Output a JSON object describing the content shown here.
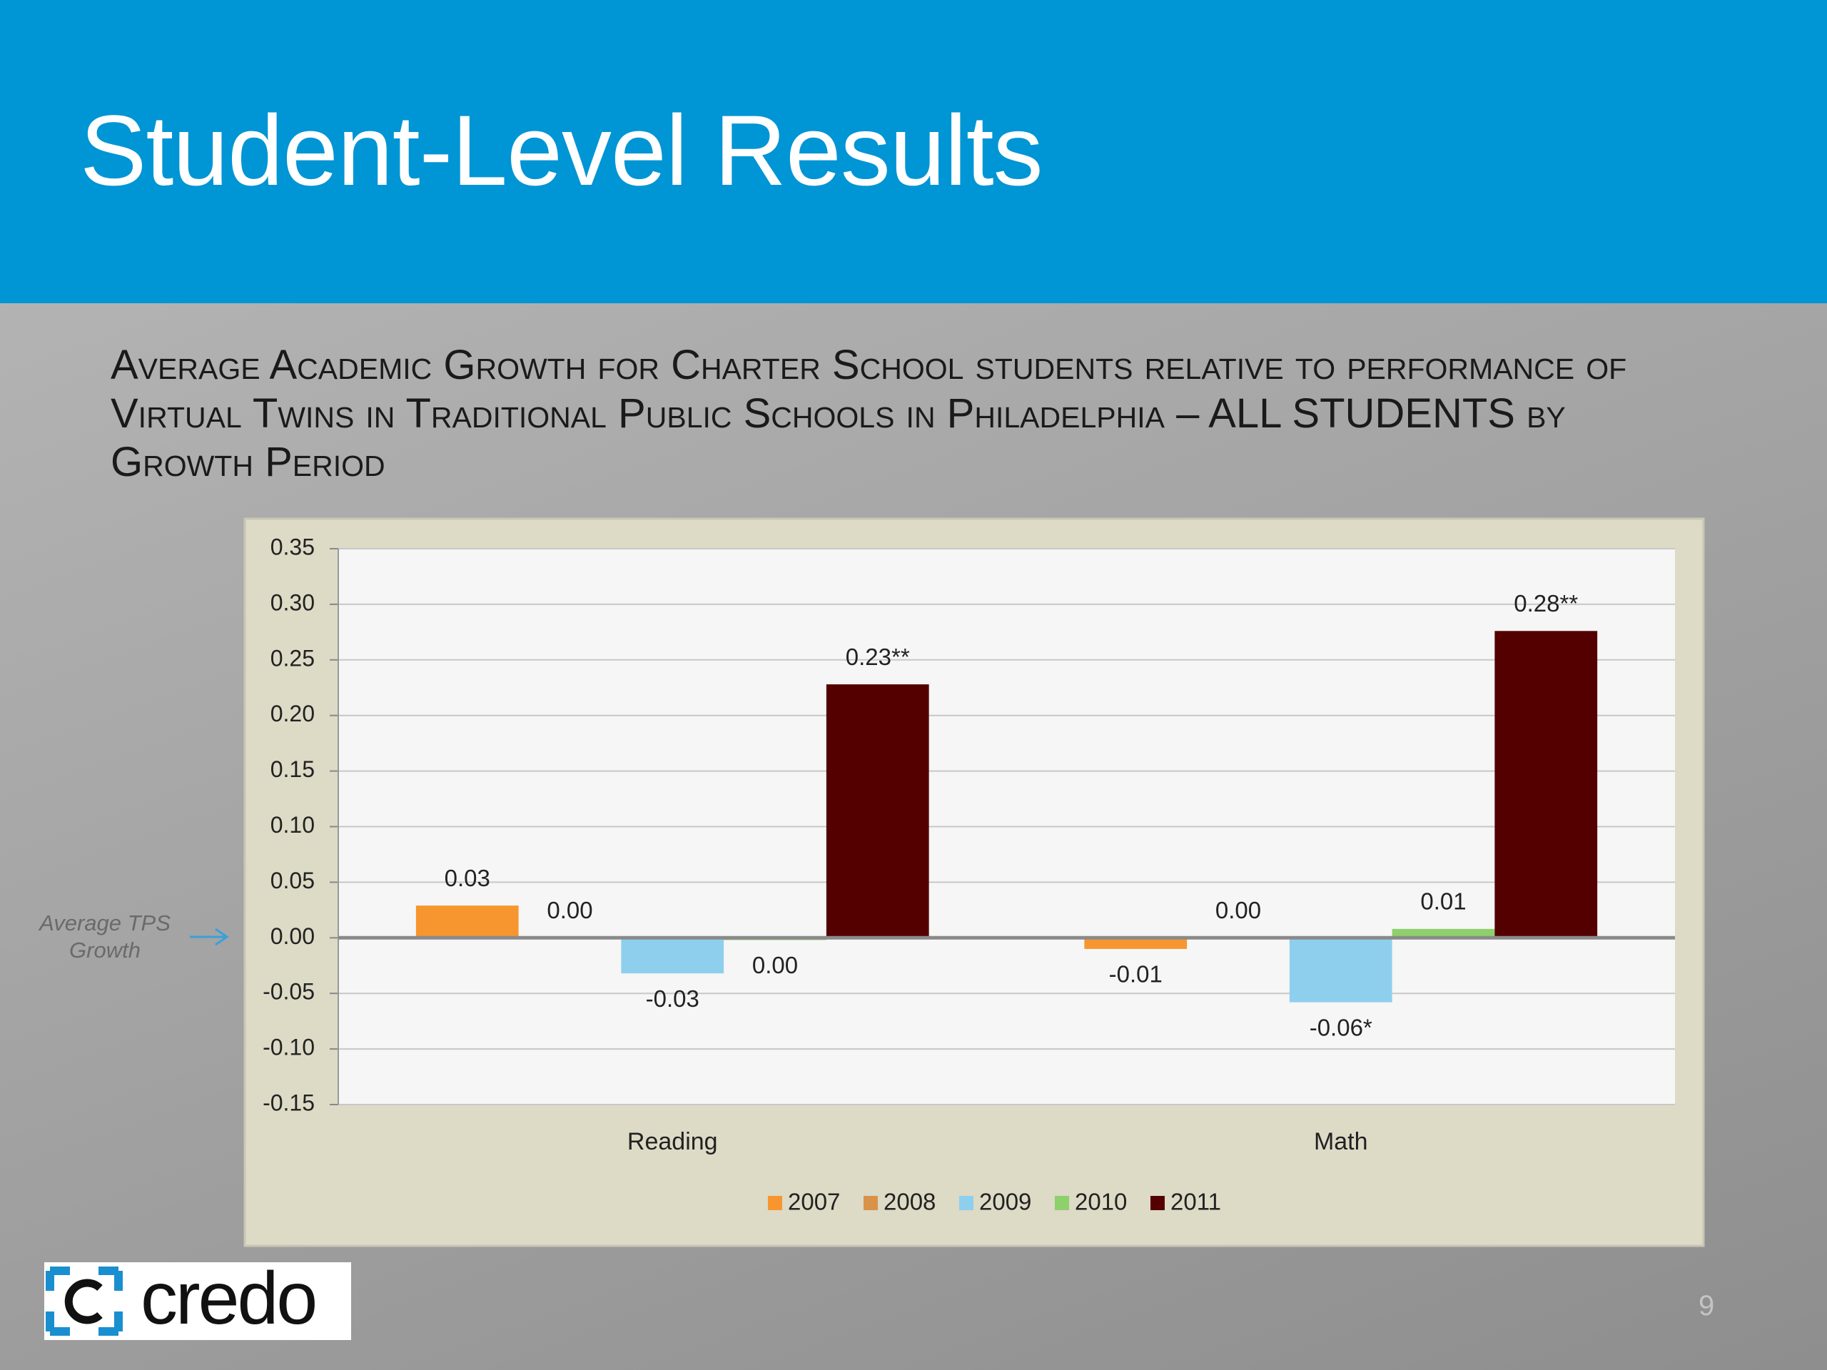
{
  "header": {
    "title": "Student-Level Results"
  },
  "subtitle": "Average Academic Growth for Charter School students relative to performance of Virtual Twins in Traditional Public Schools in Philadelphia – ALL STUDENTS by Growth Period",
  "annotation": "Average TPS Growth",
  "logo": "credo",
  "page_number": "9",
  "chart_data": {
    "type": "bar",
    "categories": [
      "Reading",
      "Math"
    ],
    "series": [
      {
        "name": "2007",
        "color": "#f7962f",
        "values": [
          0.029,
          -0.01
        ],
        "value_labels": [
          "0.03",
          "-0.01"
        ]
      },
      {
        "name": "2008",
        "color": "#d9924a",
        "values": [
          0,
          0
        ],
        "value_labels": [
          "0.00",
          "0.00"
        ]
      },
      {
        "name": "2009",
        "color": "#8fcfee",
        "values": [
          -0.032,
          -0.058
        ],
        "value_labels": [
          "-0.03",
          "-0.06*"
        ]
      },
      {
        "name": "2010",
        "color": "#8ed06b",
        "values": [
          -0.002,
          0.008
        ],
        "value_labels": [
          "0.00",
          "0.01"
        ]
      },
      {
        "name": "2011",
        "color": "#540000",
        "values": [
          0.228,
          0.276
        ],
        "value_labels": [
          "0.23**",
          "0.28**"
        ]
      }
    ],
    "ylim": [
      -0.15,
      0.35
    ],
    "yticks": [
      {
        "value": -0.15,
        "label": "-0.15"
      },
      {
        "value": -0.1,
        "label": "-0.10"
      },
      {
        "value": -0.05,
        "label": "-0.05"
      },
      {
        "value": 0,
        "label": "0.00"
      },
      {
        "value": 0.05,
        "label": "0.05"
      },
      {
        "value": 0.1,
        "label": "0.10"
      },
      {
        "value": 0.15,
        "label": "0.15"
      },
      {
        "value": 0.2,
        "label": "0.20"
      },
      {
        "value": 0.25,
        "label": "0.25"
      },
      {
        "value": 0.3,
        "label": "0.30"
      },
      {
        "value": 0.35,
        "label": "0.35"
      }
    ],
    "grid": true,
    "legend": "bottom"
  }
}
